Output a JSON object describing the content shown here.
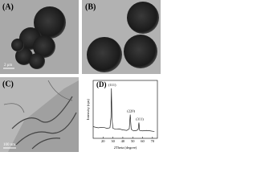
{
  "panels": [
    {
      "label": "(A)",
      "scale_bar": "2 μm"
    },
    {
      "label": "(B)"
    },
    {
      "label": "(C)",
      "scale_bar": "100 nm"
    },
    {
      "label": "(D)"
    }
  ],
  "chart_data": {
    "type": "line",
    "x_label": "2Theta (degree)",
    "y_label": "Intensity (cps)",
    "color": "#000000",
    "x": [
      10,
      15,
      20,
      24,
      27,
      28,
      28.5,
      29,
      30,
      33,
      36,
      40,
      44,
      46.5,
      47.5,
      48.5,
      51,
      54,
      55.5,
      56.3,
      57,
      60,
      64,
      68,
      72
    ],
    "values": [
      22,
      20,
      21,
      19,
      20,
      40,
      95,
      38,
      19,
      17,
      18,
      16,
      15,
      18,
      45,
      17,
      14,
      15,
      17,
      30,
      15,
      14,
      15,
      14,
      13
    ],
    "xlim": [
      10,
      75
    ],
    "ylim": [
      0,
      110
    ],
    "xticks": [
      20,
      30,
      40,
      50,
      60,
      70
    ],
    "annotations": [
      {
        "text": "(111)",
        "x": 28.5
      },
      {
        "text": "(220)",
        "x": 47.5
      },
      {
        "text": "(311)",
        "x": 56.3
      }
    ]
  }
}
